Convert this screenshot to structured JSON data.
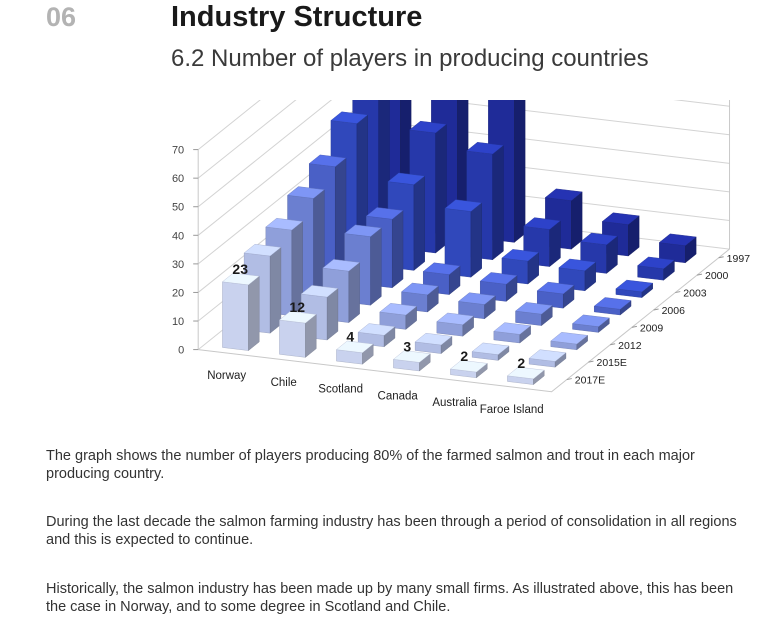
{
  "header": {
    "section_number": "06",
    "title": "Industry Structure",
    "subtitle": "6.2 Number of players in producing countries"
  },
  "chart_data": {
    "type": "bar",
    "subtype": "3d-clustered-column",
    "categories": [
      "Norway",
      "Chile",
      "Scotland",
      "Canada",
      "Australia",
      "Faroe Island"
    ],
    "series": [
      {
        "name": "1997",
        "values": [
          70,
          65,
          50,
          17,
          11,
          6
        ],
        "color": "#1f2b98"
      },
      {
        "name": "2000",
        "values": [
          60,
          42,
          37,
          13,
          10,
          4
        ],
        "color": "#2638aa"
      },
      {
        "name": "2003",
        "values": [
          49,
          30,
          23,
          8,
          7,
          2
        ],
        "color": "#3048bb"
      },
      {
        "name": "2006",
        "values": [
          40,
          24,
          7,
          6,
          5,
          2
        ],
        "color": "#4a60c6"
      },
      {
        "name": "2009",
        "values": [
          35,
          24,
          6,
          5,
          4,
          2
        ],
        "color": "#6b7fd0"
      },
      {
        "name": "2012",
        "values": [
          30,
          18,
          5,
          4,
          3,
          2
        ],
        "color": "#8f9fda"
      },
      {
        "name": "2015E",
        "values": [
          27,
          15,
          4,
          3,
          2,
          2
        ],
        "color": "#b1bde4"
      },
      {
        "name": "2017E",
        "values": [
          23,
          12,
          4,
          3,
          2,
          2
        ],
        "color": "#c9d2ee"
      }
    ],
    "ylim": [
      0,
      70
    ],
    "yticks": [
      0,
      10,
      20,
      30,
      40,
      50,
      60,
      70
    ],
    "data_labels": [
      {
        "category": "Norway",
        "series": "2017E",
        "text": "23"
      },
      {
        "category": "Chile",
        "series": "2017E",
        "text": "12"
      },
      {
        "category": "Scotland",
        "series": "2017E",
        "text": "4"
      },
      {
        "category": "Canada",
        "series": "2017E",
        "text": "3"
      },
      {
        "category": "Australia",
        "series": "2017E",
        "text": "2"
      },
      {
        "category": "Faroe Island",
        "series": "2017E",
        "text": "2"
      }
    ],
    "grid": true,
    "legend": "right"
  },
  "text": {
    "p1": "The graph shows the number of players producing 80% of the farmed salmon and trout in each major producing country.",
    "p2": "During the last decade the salmon farming industry has been through a period of consolidation in all regions and this is expected to continue.",
    "p3": "Historically, the salmon industry has been made up by many small firms. As illustrated above, this has been the case in Norway, and to some degree in Scotland and Chile."
  }
}
